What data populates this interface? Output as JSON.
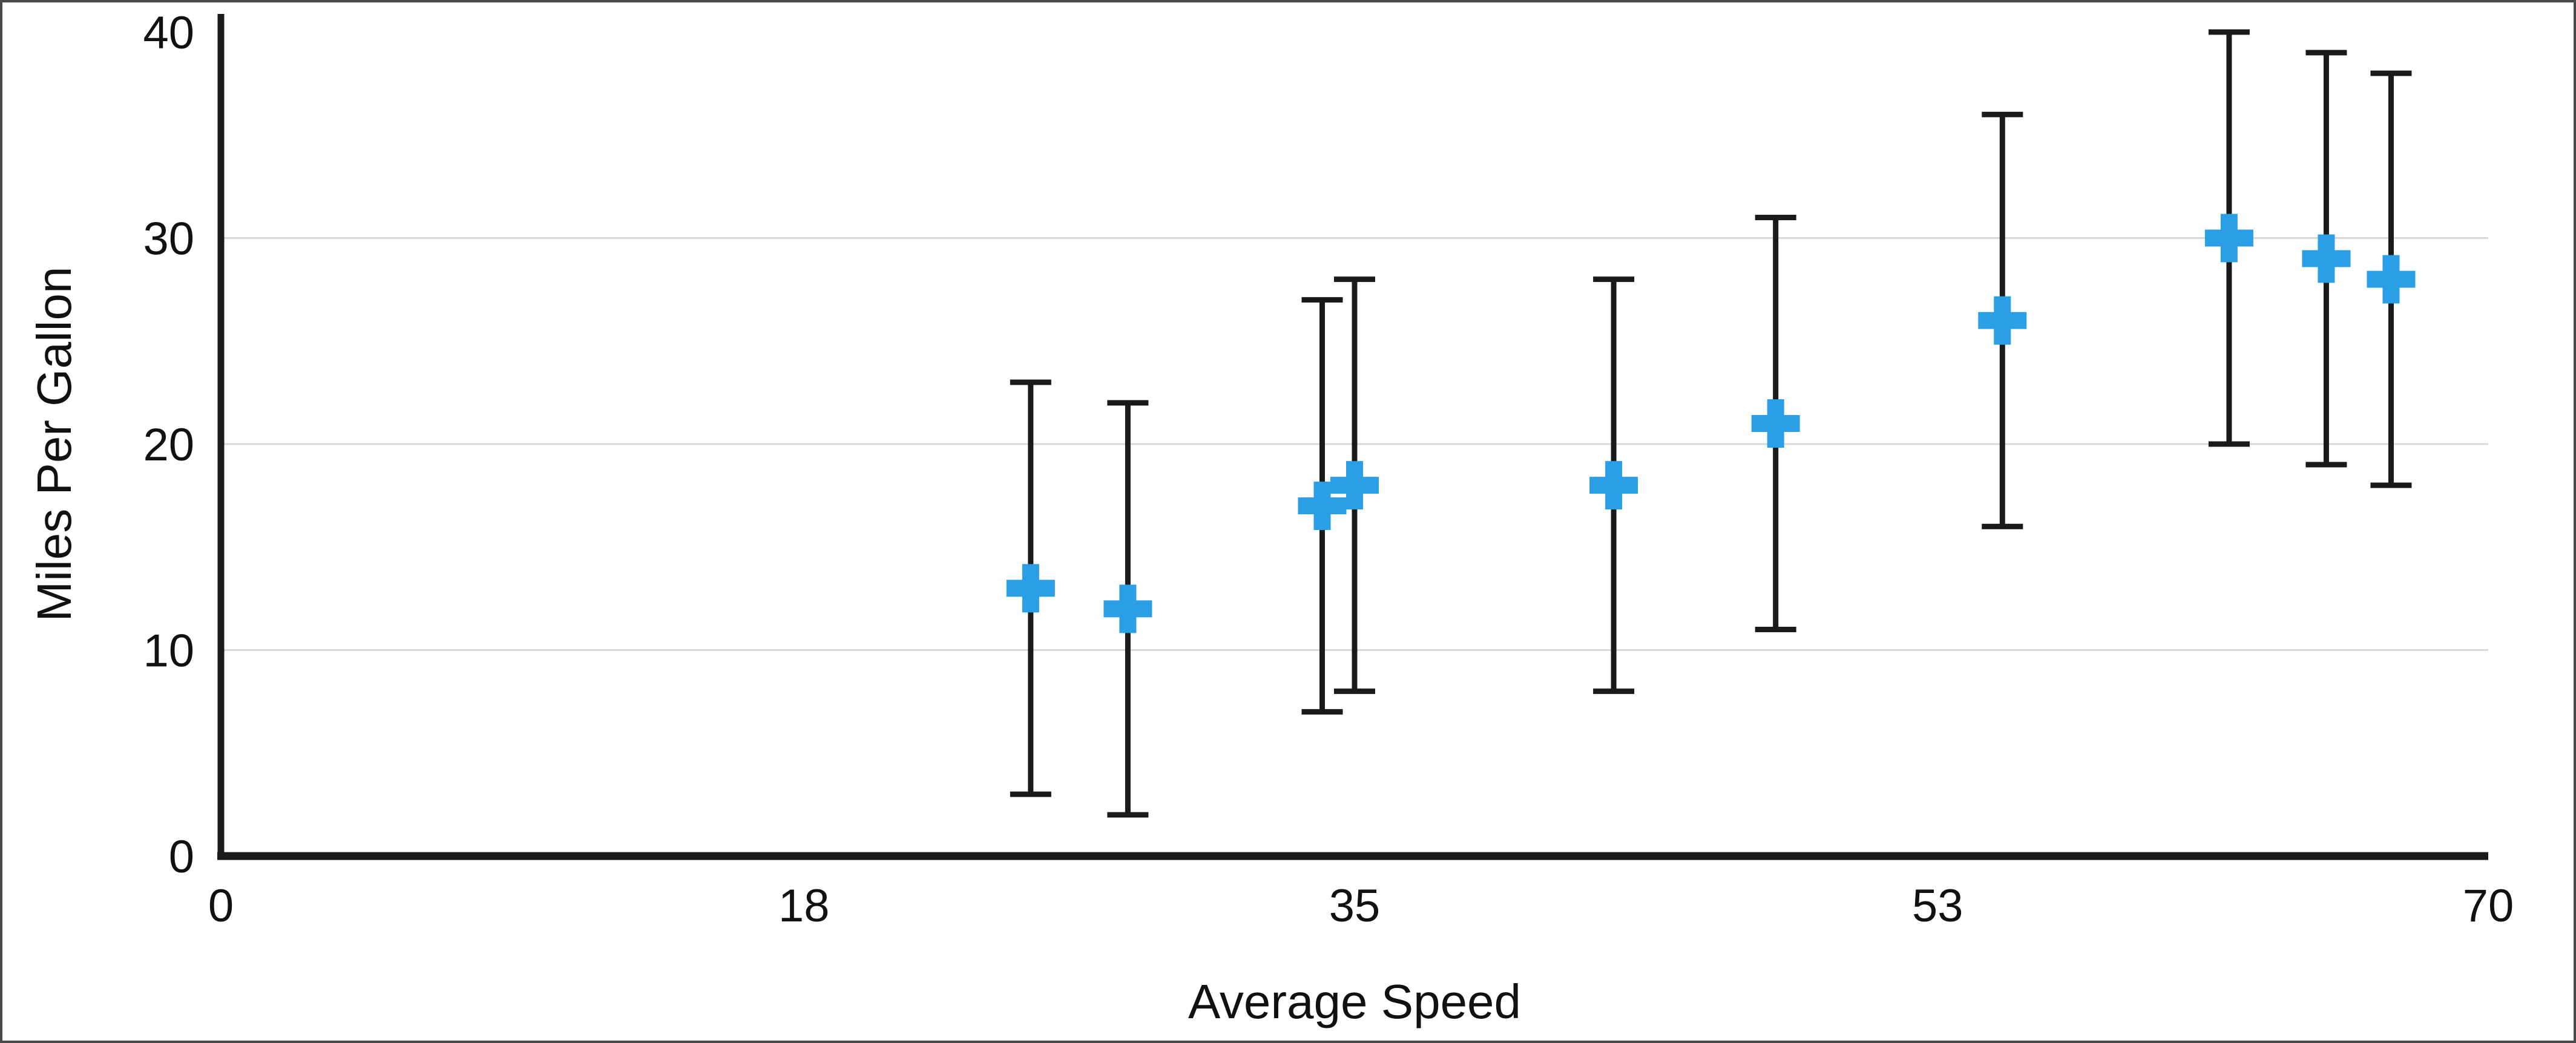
{
  "chart_data": {
    "type": "scatter",
    "title": "",
    "xlabel": "Average Speed",
    "ylabel": "Miles Per Gallon",
    "xlim": [
      0,
      70
    ],
    "ylim": [
      0,
      40
    ],
    "x_ticks": [
      0,
      18,
      35,
      53,
      70
    ],
    "y_ticks": [
      0,
      10,
      20,
      30,
      40
    ],
    "grid": "horizontal",
    "legend": "none",
    "marker": "plus",
    "colors": {
      "marker": "#2B9FE5",
      "error_bar": "#1a1a1a",
      "axis": "#1a1a1a",
      "grid": "#d8d8d8",
      "border": "#4a4a4a",
      "background": "#ffffff"
    },
    "points": [
      {
        "x": 25,
        "y": 13,
        "y_low": 3,
        "y_high": 23
      },
      {
        "x": 28,
        "y": 12,
        "y_low": 2,
        "y_high": 22
      },
      {
        "x": 34,
        "y": 17,
        "y_low": 7,
        "y_high": 27
      },
      {
        "x": 35,
        "y": 18,
        "y_low": 8,
        "y_high": 28
      },
      {
        "x": 43,
        "y": 18,
        "y_low": 8,
        "y_high": 28
      },
      {
        "x": 48,
        "y": 21,
        "y_low": 11,
        "y_high": 31
      },
      {
        "x": 55,
        "y": 26,
        "y_low": 16,
        "y_high": 36
      },
      {
        "x": 62,
        "y": 30,
        "y_low": 20,
        "y_high": 40
      },
      {
        "x": 65,
        "y": 29,
        "y_low": 19,
        "y_high": 39
      },
      {
        "x": 67,
        "y": 28,
        "y_low": 18,
        "y_high": 38
      }
    ]
  }
}
